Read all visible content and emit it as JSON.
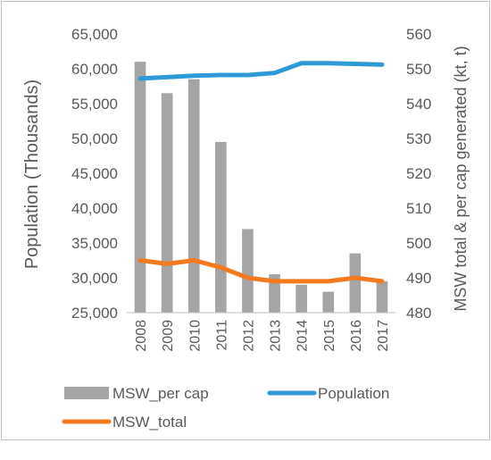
{
  "chart_data": {
    "type": "bar",
    "categories": [
      "2008",
      "2009",
      "2010",
      "2011",
      "2012",
      "2013",
      "2014",
      "2015",
      "2016",
      "2017"
    ],
    "ylabel_left": "Population (Thousands)",
    "ylabel_right": "MSW total & per cap generated (kt, t)",
    "ylim_left": [
      25000,
      65000
    ],
    "yticks_left": [
      "25,000",
      "30,000",
      "35,000",
      "40,000",
      "45,000",
      "50,000",
      "55,000",
      "60,000",
      "65,000"
    ],
    "ylim_right": [
      480,
      560
    ],
    "yticks_right": [
      "480",
      "490",
      "500",
      "510",
      "520",
      "530",
      "540",
      "550",
      "560"
    ],
    "grid": false,
    "legend_position": "bottom",
    "series": [
      {
        "name": "MSW_per cap",
        "kind": "bar",
        "axis": "right",
        "color": "#a5a5a5",
        "values": [
          552,
          543,
          547,
          529,
          504,
          491,
          488,
          486,
          497,
          489
        ]
      },
      {
        "name": "Population",
        "kind": "line",
        "axis": "left",
        "color": "#2e9bd6",
        "values": [
          58600,
          58800,
          59000,
          59100,
          59100,
          59400,
          60800,
          60800,
          60700,
          60600
        ]
      },
      {
        "name": "MSW_total",
        "kind": "line",
        "axis": "right",
        "color": "#f47a20",
        "values": [
          495,
          494,
          495,
          493,
          490,
          489,
          489,
          489,
          490,
          489
        ]
      }
    ]
  }
}
